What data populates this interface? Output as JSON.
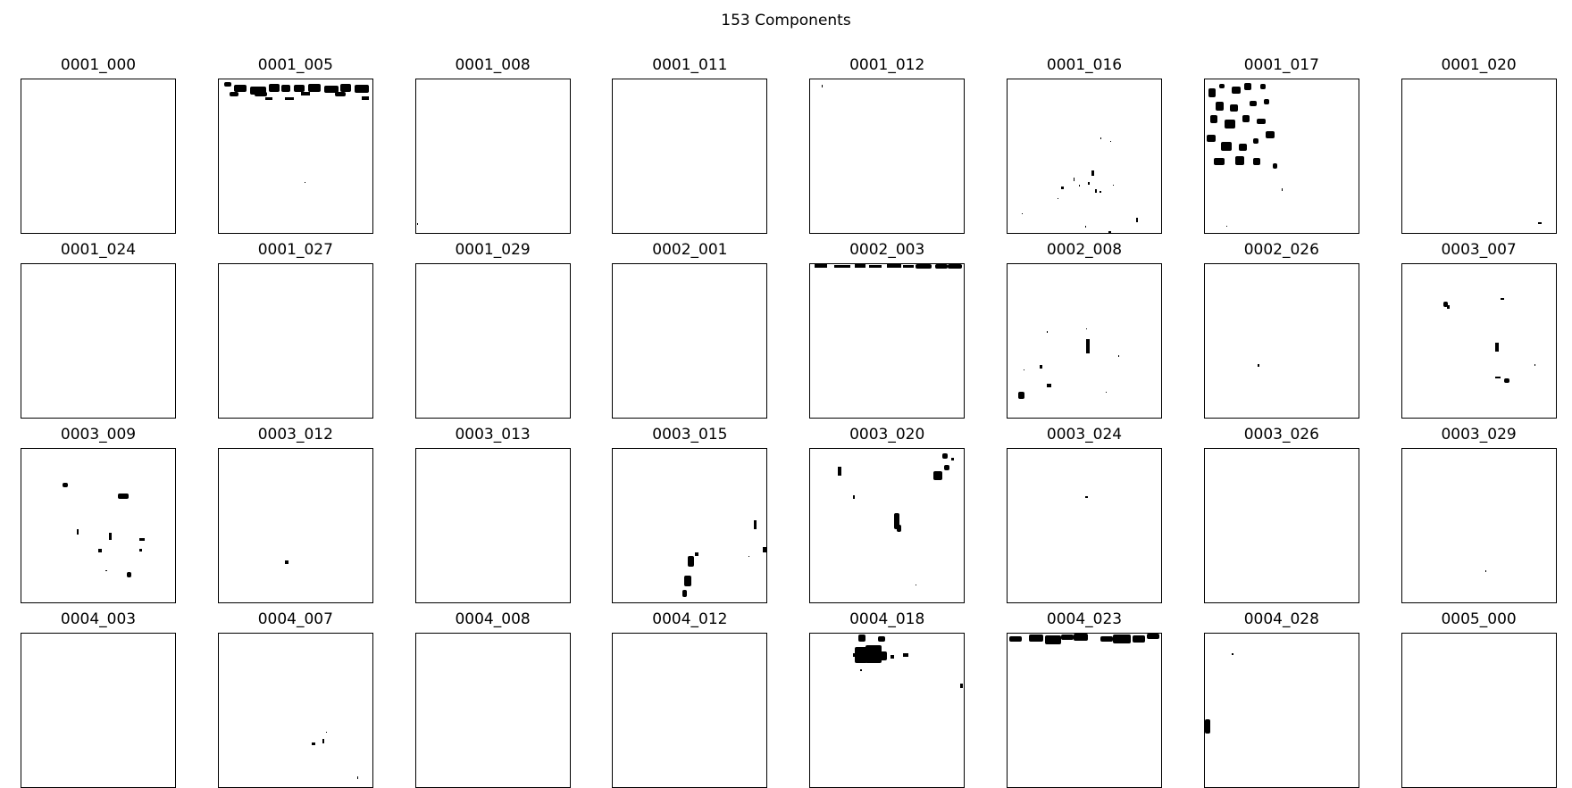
{
  "title": "153 Components",
  "chart_data": {
    "type": "heatmap",
    "title": "153 Components",
    "colormap": "binary",
    "rows": 4,
    "cols": 8,
    "panels": [
      {
        "label": "0001_000",
        "blobs": []
      },
      {
        "label": "0001_005",
        "blobs": [
          [
            6,
            3,
            8,
            5
          ],
          [
            17,
            6,
            14,
            8
          ],
          [
            35,
            8,
            18,
            9
          ],
          [
            56,
            5,
            12,
            9
          ],
          [
            70,
            6,
            10,
            8
          ],
          [
            84,
            6,
            12,
            8
          ],
          [
            100,
            5,
            14,
            9
          ],
          [
            118,
            7,
            16,
            8
          ],
          [
            136,
            5,
            12,
            9
          ],
          [
            152,
            6,
            16,
            9
          ],
          [
            12,
            14,
            10,
            5
          ],
          [
            40,
            14,
            14,
            5
          ],
          [
            92,
            14,
            10,
            4
          ],
          [
            130,
            14,
            12,
            5
          ],
          [
            52,
            20,
            8,
            3
          ],
          [
            74,
            20,
            10,
            3
          ],
          [
            160,
            19,
            8,
            4
          ],
          [
            96,
            115,
            1,
            1
          ]
        ]
      },
      {
        "label": "0001_008",
        "blobs": [
          [
            1,
            161,
            1,
            2
          ]
        ]
      },
      {
        "label": "0001_011",
        "blobs": []
      },
      {
        "label": "0001_012",
        "blobs": [
          [
            13,
            6,
            1,
            3
          ]
        ]
      },
      {
        "label": "0001_016",
        "blobs": [
          [
            104,
            65,
            1,
            2
          ],
          [
            115,
            69,
            1,
            1
          ],
          [
            94,
            102,
            3,
            6
          ],
          [
            80,
            118,
            1,
            2
          ],
          [
            90,
            115,
            2,
            3
          ],
          [
            60,
            120,
            3,
            3
          ],
          [
            103,
            125,
            2,
            2
          ],
          [
            98,
            123,
            2,
            4
          ],
          [
            74,
            110,
            1,
            4
          ],
          [
            118,
            118,
            1,
            1
          ],
          [
            56,
            133,
            1,
            1
          ],
          [
            144,
            155,
            2,
            5
          ],
          [
            87,
            164,
            1,
            2
          ],
          [
            113,
            170,
            3,
            2
          ],
          [
            16,
            150,
            1,
            1
          ]
        ]
      },
      {
        "label": "0001_017",
        "blobs": [
          [
            4,
            10,
            8,
            10
          ],
          [
            16,
            5,
            6,
            5
          ],
          [
            30,
            8,
            10,
            8
          ],
          [
            44,
            4,
            8,
            8
          ],
          [
            62,
            5,
            6,
            6
          ],
          [
            12,
            25,
            9,
            10
          ],
          [
            28,
            28,
            9,
            8
          ],
          [
            50,
            24,
            8,
            6
          ],
          [
            66,
            22,
            6,
            6
          ],
          [
            6,
            40,
            8,
            9
          ],
          [
            22,
            45,
            12,
            10
          ],
          [
            42,
            40,
            8,
            8
          ],
          [
            58,
            44,
            10,
            6
          ],
          [
            68,
            58,
            10,
            8
          ],
          [
            2,
            62,
            10,
            8
          ],
          [
            18,
            70,
            12,
            10
          ],
          [
            38,
            72,
            9,
            8
          ],
          [
            54,
            66,
            6,
            6
          ],
          [
            10,
            88,
            12,
            8
          ],
          [
            34,
            86,
            10,
            10
          ],
          [
            54,
            88,
            8,
            8
          ],
          [
            76,
            94,
            5,
            6
          ],
          [
            86,
            122,
            1,
            3
          ],
          [
            24,
            164,
            1,
            1
          ]
        ]
      },
      {
        "label": "0001_020",
        "blobs": [
          [
            152,
            160,
            4,
            2
          ]
        ]
      },
      {
        "label": "0001_024",
        "blobs": []
      },
      {
        "label": "0001_027",
        "blobs": []
      },
      {
        "label": "0001_029",
        "blobs": []
      },
      {
        "label": "0002_001",
        "blobs": []
      },
      {
        "label": "0002_003",
        "blobs": [
          [
            5,
            0,
            14,
            4
          ],
          [
            27,
            1,
            18,
            3
          ],
          [
            50,
            0,
            12,
            4
          ],
          [
            66,
            1,
            14,
            3
          ],
          [
            86,
            0,
            16,
            4
          ],
          [
            104,
            1,
            12,
            3
          ],
          [
            118,
            0,
            18,
            5
          ],
          [
            140,
            0,
            14,
            5
          ],
          [
            154,
            0,
            16,
            5
          ]
        ]
      },
      {
        "label": "0002_008",
        "blobs": [
          [
            44,
            75,
            1,
            2
          ],
          [
            88,
            72,
            1,
            1
          ],
          [
            88,
            84,
            4,
            16
          ],
          [
            36,
            113,
            3,
            4
          ],
          [
            44,
            134,
            5,
            4
          ],
          [
            12,
            143,
            7,
            8
          ],
          [
            18,
            118,
            1,
            1
          ],
          [
            124,
            102,
            1,
            2
          ],
          [
            110,
            143,
            1,
            1
          ]
        ]
      },
      {
        "label": "0002_026",
        "blobs": [
          [
            59,
            112,
            2,
            3
          ]
        ]
      },
      {
        "label": "0003_007",
        "blobs": [
          [
            46,
            42,
            5,
            6
          ],
          [
            50,
            46,
            3,
            4
          ],
          [
            110,
            38,
            4,
            2
          ],
          [
            104,
            88,
            4,
            10
          ],
          [
            104,
            126,
            6,
            2
          ],
          [
            114,
            128,
            6,
            5
          ],
          [
            148,
            112,
            1,
            2
          ]
        ]
      },
      {
        "label": "0003_009",
        "blobs": [
          [
            46,
            38,
            6,
            5
          ],
          [
            108,
            50,
            12,
            6
          ],
          [
            62,
            90,
            2,
            6
          ],
          [
            98,
            94,
            3,
            8
          ],
          [
            86,
            112,
            4,
            4
          ],
          [
            132,
            100,
            6,
            3
          ],
          [
            132,
            112,
            3,
            3
          ],
          [
            134,
            100,
            1,
            1
          ],
          [
            118,
            138,
            5,
            6
          ],
          [
            94,
            136,
            2,
            1
          ]
        ]
      },
      {
        "label": "0003_012",
        "blobs": [
          [
            74,
            125,
            4,
            4
          ]
        ]
      },
      {
        "label": "0003_013",
        "blobs": []
      },
      {
        "label": "0003_015",
        "blobs": [
          [
            158,
            80,
            3,
            10
          ],
          [
            168,
            110,
            4,
            6
          ],
          [
            84,
            120,
            7,
            12
          ],
          [
            92,
            116,
            4,
            4
          ],
          [
            80,
            142,
            8,
            12
          ],
          [
            78,
            158,
            5,
            8
          ],
          [
            152,
            120,
            1,
            1
          ]
        ]
      },
      {
        "label": "0003_020",
        "blobs": [
          [
            148,
            5,
            6,
            6
          ],
          [
            158,
            10,
            3,
            3
          ],
          [
            138,
            25,
            10,
            10
          ],
          [
            150,
            18,
            6,
            6
          ],
          [
            31,
            20,
            4,
            10
          ],
          [
            94,
            72,
            6,
            18
          ],
          [
            97,
            85,
            5,
            8
          ],
          [
            48,
            52,
            2,
            4
          ],
          [
            118,
            152,
            1,
            1
          ]
        ]
      },
      {
        "label": "0003_024",
        "blobs": [
          [
            87,
            53,
            3,
            2
          ]
        ]
      },
      {
        "label": "0003_026",
        "blobs": []
      },
      {
        "label": "0003_029",
        "blobs": [
          [
            93,
            136,
            1,
            2
          ]
        ]
      },
      {
        "label": "0004_003",
        "blobs": []
      },
      {
        "label": "0004_007",
        "blobs": [
          [
            104,
            122,
            4,
            3
          ],
          [
            116,
            118,
            2,
            5
          ],
          [
            120,
            110,
            1,
            1
          ],
          [
            155,
            160,
            1,
            3
          ]
        ]
      },
      {
        "label": "0004_008",
        "blobs": []
      },
      {
        "label": "0004_012",
        "blobs": []
      },
      {
        "label": "0004_018",
        "blobs": [
          [
            54,
            1,
            8,
            8
          ],
          [
            76,
            3,
            8,
            6
          ],
          [
            50,
            15,
            14,
            18
          ],
          [
            62,
            13,
            18,
            20
          ],
          [
            76,
            20,
            10,
            10
          ],
          [
            48,
            22,
            6,
            4
          ],
          [
            90,
            24,
            4,
            4
          ],
          [
            104,
            22,
            6,
            4
          ],
          [
            56,
            40,
            2,
            2
          ],
          [
            168,
            56,
            3,
            5
          ]
        ]
      },
      {
        "label": "0004_023",
        "blobs": [
          [
            2,
            3,
            14,
            6
          ],
          [
            24,
            1,
            16,
            8
          ],
          [
            42,
            2,
            18,
            10
          ],
          [
            60,
            1,
            14,
            6
          ],
          [
            74,
            0,
            16,
            8
          ],
          [
            104,
            3,
            14,
            6
          ],
          [
            118,
            1,
            20,
            10
          ],
          [
            140,
            2,
            14,
            8
          ],
          [
            156,
            0,
            14,
            6
          ]
        ]
      },
      {
        "label": "0004_028",
        "blobs": [
          [
            0,
            96,
            6,
            16
          ],
          [
            30,
            22,
            2,
            2
          ]
        ]
      },
      {
        "label": "0005_000",
        "blobs": []
      }
    ]
  }
}
